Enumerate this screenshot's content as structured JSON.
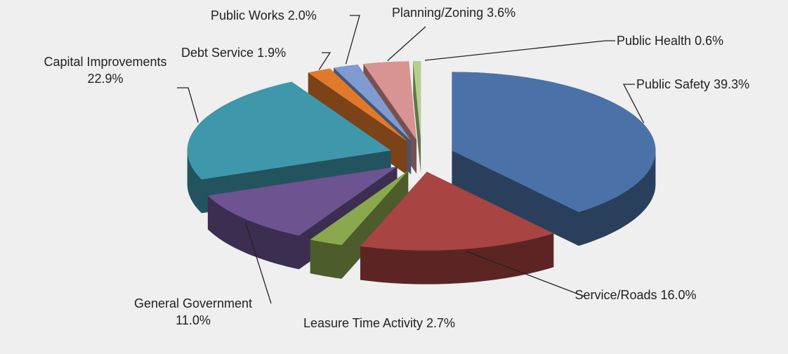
{
  "chart_data": {
    "type": "pie",
    "categories": [
      "Public Safety",
      "Service/Roads",
      "Leasure Time Activity",
      "General Government",
      "Capital Improvements",
      "Debt Service",
      "Public Works",
      "Planning/Zoning",
      "Public Health"
    ],
    "values": [
      39.3,
      16.0,
      2.7,
      11.0,
      22.9,
      1.9,
      2.0,
      3.6,
      0.6
    ],
    "value_labels": [
      "39.3%",
      "16.0%",
      "2.7%",
      "11.0%",
      "22.9%",
      "1.9%",
      "2.0%",
      "3.6%",
      "0.6%"
    ],
    "colors": [
      "#4a72a8",
      "#a84442",
      "#8aa84e",
      "#6d5491",
      "#3f97ac",
      "#e07a2a",
      "#7f9bd1",
      "#d89492",
      "#b6cf8e"
    ]
  }
}
